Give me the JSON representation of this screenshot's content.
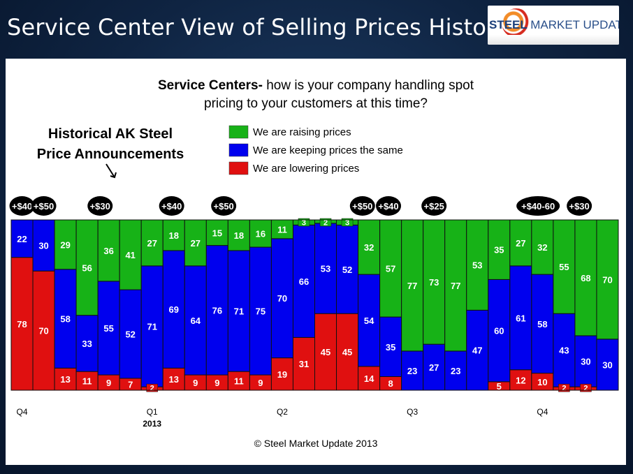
{
  "header": {
    "title": "Service Center View of Selling Prices History"
  },
  "logo": {
    "word1": "STEEL",
    "word2": "MARKET UPDATE"
  },
  "colors": {
    "raising": "#17b217",
    "keeping": "#0000ee",
    "lowering": "#e01010"
  },
  "chart_data": {
    "type": "bar",
    "stacked": true,
    "title_bold": "Service Centers-",
    "title_rest": " how is your company handling spot",
    "title_line2": "pricing to your customers at this time?",
    "annotation_line1": "Historical AK Steel",
    "annotation_line2": "Price Announcements",
    "ylim": [
      0,
      100
    ],
    "legend": [
      "We are raising prices",
      "We are keeping prices the same",
      "We are lowering prices"
    ],
    "series": [
      {
        "name": "We are lowering prices",
        "color": "#e01010",
        "values": [
          78,
          70,
          13,
          11,
          9,
          7,
          2,
          13,
          9,
          9,
          11,
          9,
          19,
          31,
          45,
          45,
          14,
          8,
          0,
          0,
          0,
          0,
          5,
          12,
          10,
          2,
          2,
          0
        ]
      },
      {
        "name": "We are keeping prices the same",
        "color": "#0000ee",
        "values": [
          22,
          30,
          58,
          33,
          55,
          52,
          71,
          69,
          64,
          76,
          71,
          75,
          70,
          66,
          53,
          52,
          54,
          35,
          23,
          27,
          23,
          47,
          60,
          61,
          58,
          43,
          30,
          30
        ]
      },
      {
        "name": "We are raising prices",
        "color": "#17b217",
        "values": [
          0,
          0,
          29,
          56,
          36,
          41,
          27,
          18,
          27,
          15,
          18,
          16,
          11,
          3,
          2,
          3,
          32,
          57,
          77,
          73,
          77,
          53,
          35,
          27,
          32,
          55,
          68,
          70
        ]
      }
    ],
    "announcements": [
      {
        "bar": 0.5,
        "label": "+$40"
      },
      {
        "bar": 1.5,
        "label": "+$50"
      },
      {
        "bar": 4.1,
        "label": "+$30"
      },
      {
        "bar": 7.4,
        "label": "+$40"
      },
      {
        "bar": 9.8,
        "label": "+$50"
      },
      {
        "bar": 16.2,
        "label": "+$50"
      },
      {
        "bar": 17.4,
        "label": "+$40"
      },
      {
        "bar": 19.5,
        "label": "+$25"
      },
      {
        "bar": 24.3,
        "label": "+$40-60"
      },
      {
        "bar": 26.2,
        "label": "+$30"
      }
    ],
    "x_ticks": [
      {
        "bar": 0.5,
        "label": "Q4"
      },
      {
        "bar": 6.5,
        "label": "Q1"
      },
      {
        "bar": 12.5,
        "label": "Q2"
      },
      {
        "bar": 18.5,
        "label": "Q3"
      },
      {
        "bar": 24.5,
        "label": "Q4"
      }
    ],
    "year_label": {
      "bar": 6.5,
      "label": "2013"
    },
    "footer": "© Steel Market Update 2013"
  }
}
